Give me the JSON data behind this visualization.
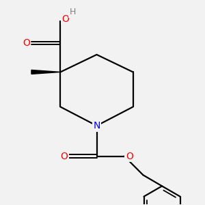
{
  "bg_color": "#f2f2f2",
  "atom_colors": {
    "C": "#000000",
    "O": "#ff0000",
    "N": "#0000ff",
    "H": "#808080"
  },
  "bond_color": "#000000",
  "bond_width": 1.6,
  "figsize": [
    3.0,
    3.0
  ],
  "dpi": 100
}
